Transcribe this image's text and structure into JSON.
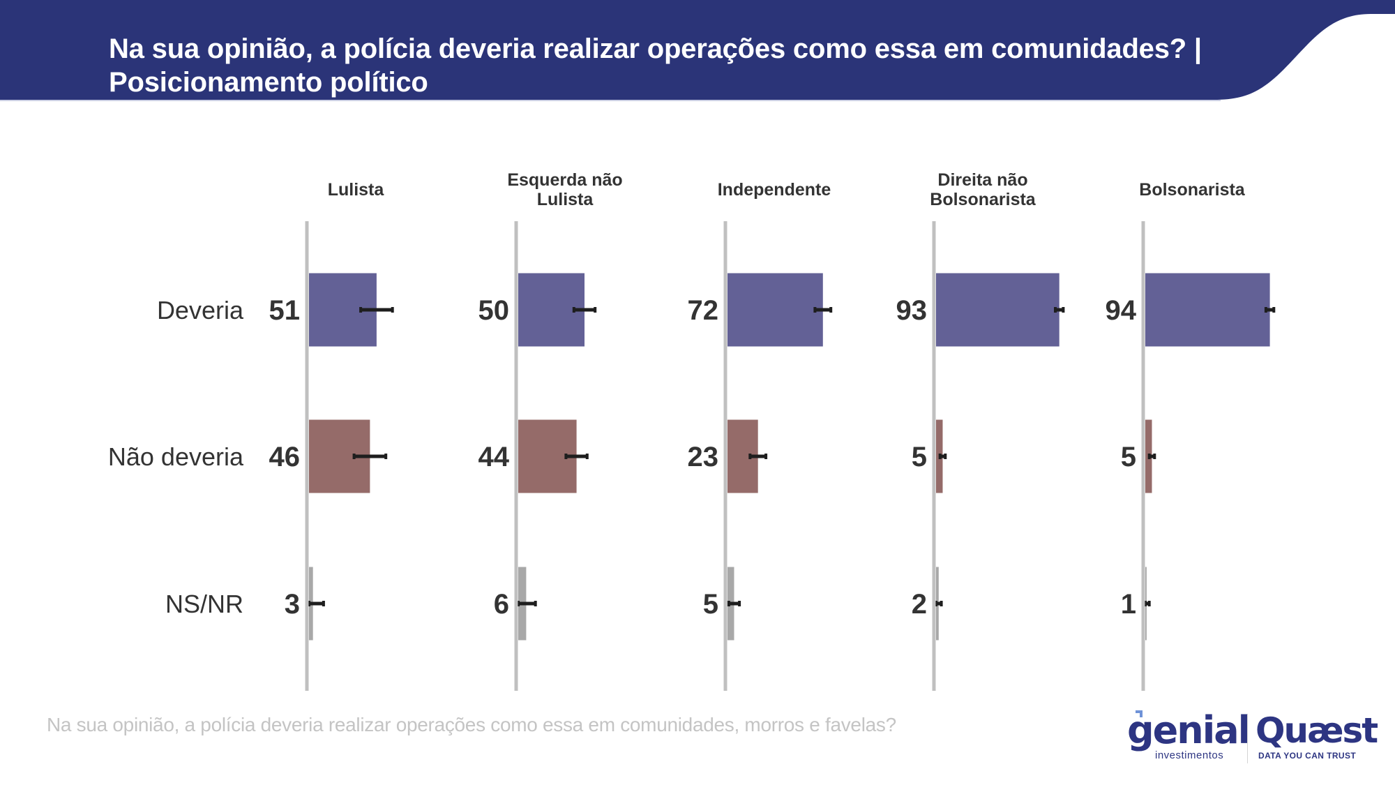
{
  "header": {
    "title_line1": "Na sua opinião, a polícia deveria realizar operações como essa em comunidades? |",
    "title_line2": "Posicionamento político",
    "background_color": "#2b3478"
  },
  "colors": {
    "deveria": "#636196",
    "nao_deveria": "#956b69",
    "ns_nr": "#a8a8a8",
    "axis": "#c0c0c0",
    "error_bar": "#1e1e1e",
    "value_label": "#333333",
    "category_label": "#333333"
  },
  "chart_data": {
    "type": "bar",
    "orientation": "horizontal",
    "layout": "small-multiples",
    "title": "Na sua opinião, a polícia deveria realizar operações como essa em comunidades? | Posicionamento político",
    "xlabel": "",
    "ylabel": "",
    "xlim": [
      0,
      100
    ],
    "grid": false,
    "categories": [
      "Deveria",
      "Não deveria",
      "NS/NR"
    ],
    "panels": [
      {
        "name": "Lulista",
        "values": [
          51,
          46,
          3
        ],
        "error_margin": [
          12,
          12,
          8
        ]
      },
      {
        "name": "Esquerda não Lulista",
        "values": [
          50,
          44,
          6
        ],
        "error_margin": [
          8,
          8,
          7
        ]
      },
      {
        "name": "Independente",
        "values": [
          72,
          23,
          5
        ],
        "error_margin": [
          6,
          6,
          4
        ]
      },
      {
        "name": "Direita não Bolsonarista",
        "values": [
          93,
          5,
          2
        ],
        "error_margin": [
          3,
          2,
          2
        ]
      },
      {
        "name": "Bolsonarista",
        "values": [
          94,
          5,
          1
        ],
        "error_margin": [
          3,
          2,
          2
        ]
      }
    ],
    "panel_title_lines": [
      [
        "Lulista"
      ],
      [
        "Esquerda não",
        "Lulista"
      ],
      [
        "Independente"
      ],
      [
        "Direita não",
        "Bolsonarista"
      ],
      [
        "Bolsonarista"
      ]
    ]
  },
  "footer": {
    "question": "Na sua opinião, a polícia deveria realizar operações como essa em comunidades, morros e favelas?",
    "logo_genial": "genial",
    "logo_genial_sub": "investimentos",
    "logo_quaest": "Quæst",
    "logo_quaest_sub": "DATA YOU CAN TRUST"
  }
}
